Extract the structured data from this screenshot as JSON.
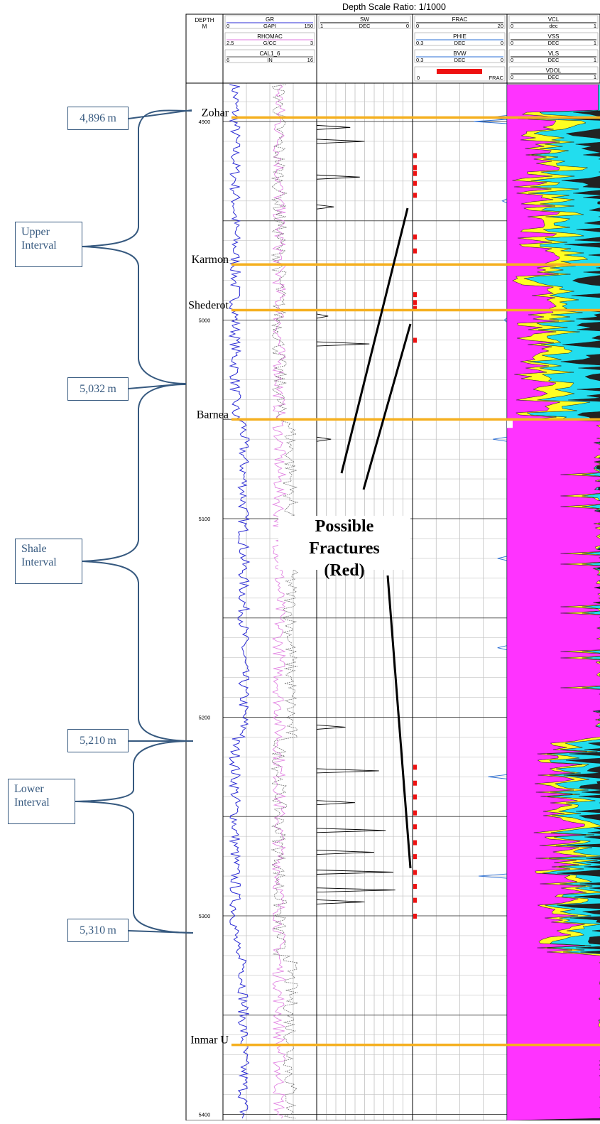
{
  "log": {
    "title": "Depth Scale Ratio: 1/1000",
    "depth_track": {
      "name": "DEPTH",
      "unit": "M",
      "ticks": [
        {
          "label": "4900",
          "depth": 4900
        },
        {
          "label": "5000",
          "depth": 5000
        },
        {
          "label": "5100",
          "depth": 5100
        },
        {
          "label": "5200",
          "depth": 5200
        },
        {
          "label": "5300",
          "depth": 5300
        },
        {
          "label": "5400",
          "depth": 5400
        }
      ]
    },
    "headers": {
      "gr": {
        "name": "GR",
        "unit": "GAPI",
        "min": "0",
        "max": "150",
        "color": "#2b2bd4"
      },
      "rhomac": {
        "name": "RHOMAC",
        "unit": "G/CC",
        "min": "2.5",
        "max": "3",
        "color": "#e07ae0"
      },
      "cal": {
        "name": "CAL1_6",
        "unit": "IN",
        "min": "6",
        "max": "16",
        "color": "#555555"
      },
      "sw": {
        "name": "SW",
        "unit": "DEC",
        "min": "1",
        "max": "0"
      },
      "frac": {
        "name": "FRAC",
        "min": "0",
        "max": "20"
      },
      "phie": {
        "name": "PHIE",
        "unit": "DEC",
        "min": "0.3",
        "max": "0"
      },
      "bvw": {
        "name": "BVW",
        "unit": "DEC",
        "min": "0.3",
        "max": "0"
      },
      "fracflag": {
        "name": "FRAC",
        "min": "0",
        "color": "#ee1111"
      },
      "vcl": {
        "name": "VCL",
        "unit": "dec",
        "min": "0",
        "max": "1"
      },
      "vss": {
        "name": "VSS",
        "unit": "DEC",
        "min": "0",
        "max": "1"
      },
      "vls": {
        "name": "VLS",
        "unit": "DEC",
        "min": "0",
        "max": "1"
      },
      "vdol": {
        "name": "VDOL",
        "unit": "DEC",
        "min": "0",
        "max": "1"
      }
    },
    "formations": [
      {
        "name": "Zohar",
        "depth": 4898
      },
      {
        "name": "Karmon",
        "depth": 4972
      },
      {
        "name": "Shederot",
        "depth": 4995
      },
      {
        "name": "Barnea",
        "depth": 5050
      },
      {
        "name": "Inmar U",
        "depth": 5365
      }
    ],
    "fracture_depths": [
      4917,
      4923,
      4926,
      4931,
      4937,
      4958,
      4965,
      4987,
      4991,
      4994,
      5010,
      5225,
      5233,
      5240,
      5248,
      5255,
      5263,
      5270,
      5278,
      5285,
      5292,
      5300
    ],
    "colors": {
      "formation_line": "#f5b020",
      "clay": "#ff33ff",
      "sand": "#ffff22",
      "lime": "#22ddee",
      "dolomite": "#222222",
      "fracture": "#ee1111",
      "annotation": "#36597f"
    }
  },
  "annotations": {
    "depth_marks": [
      {
        "label": "4,896 m"
      },
      {
        "label": "5,032 m"
      },
      {
        "label": "5,210 m"
      },
      {
        "label": "5,310 m"
      }
    ],
    "intervals": [
      {
        "line1": "Upper",
        "line2": "Interval"
      },
      {
        "line1": "Shale",
        "line2": "Interval"
      },
      {
        "line1": "Lower",
        "line2": "Interval"
      }
    ],
    "fractures_label": {
      "line1": "Possible",
      "line2": "Fractures",
      "line3": "(Red)"
    }
  }
}
